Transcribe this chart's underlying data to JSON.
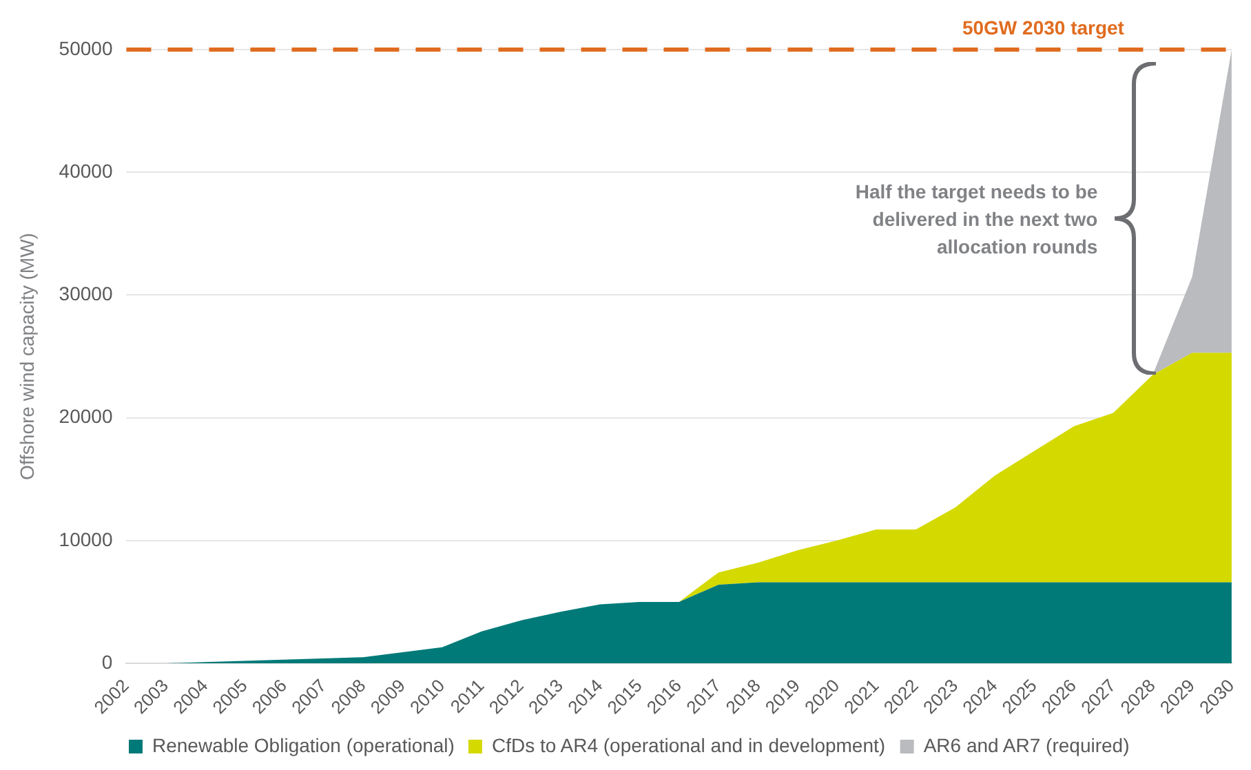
{
  "chart_data": {
    "type": "area",
    "stacked": true,
    "ylabel": "Offshore wind capacity (MW)",
    "categories": [
      "2002",
      "2003",
      "2004",
      "2005",
      "2006",
      "2007",
      "2008",
      "2009",
      "2010",
      "2011",
      "2012",
      "2013",
      "2014",
      "2015",
      "2016",
      "2017",
      "2018",
      "2019",
      "2020",
      "2021",
      "2022",
      "2023",
      "2024",
      "2025",
      "2026",
      "2027",
      "2028",
      "2029",
      "2030"
    ],
    "series": [
      {
        "name": "Renewable Obligation (operational)",
        "color": "#007a78",
        "values": [
          0,
          0,
          100,
          200,
          300,
          400,
          500,
          900,
          1300,
          2600,
          3500,
          4200,
          4800,
          5000,
          5000,
          6400,
          6600,
          6600,
          6600,
          6600,
          6600,
          6600,
          6600,
          6600,
          6600,
          6600,
          6600,
          6600,
          6600
        ]
      },
      {
        "name": "CfDs to AR4 (operational and in development)",
        "color": "#d4d900",
        "values": [
          null,
          null,
          null,
          null,
          null,
          null,
          null,
          null,
          null,
          null,
          null,
          null,
          null,
          null,
          0,
          1000,
          1600,
          2600,
          3400,
          4300,
          4300,
          6100,
          8700,
          10700,
          12700,
          13800,
          16900,
          18700,
          18700
        ]
      },
      {
        "name": "AR6 and AR7 (required)",
        "color": "#b9bbbe",
        "values": [
          null,
          null,
          null,
          null,
          null,
          null,
          null,
          null,
          null,
          null,
          null,
          null,
          null,
          null,
          null,
          null,
          null,
          null,
          null,
          null,
          null,
          null,
          null,
          null,
          null,
          null,
          0,
          6200,
          24700
        ]
      }
    ],
    "ylim": [
      0,
      50000
    ],
    "yticks": [
      0,
      10000,
      20000,
      30000,
      40000,
      50000
    ],
    "grid": "y",
    "legend": "bottom",
    "ref_lines": [
      {
        "axis": "y",
        "value": 50000,
        "label": "50GW 2030 target",
        "color": "#e06c1f",
        "line_style": "dashed"
      }
    ],
    "annotations": [
      "Half the target needs to be delivered in the next two allocation rounds"
    ]
  }
}
